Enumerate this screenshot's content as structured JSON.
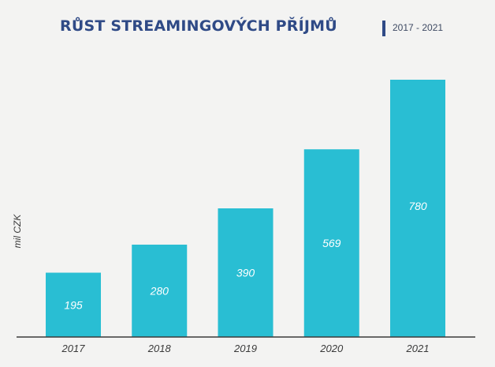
{
  "header": {
    "title": "RŮST STREAMINGOVÝCH PŘÍJMŮ",
    "subtitle": "2017 - 2021"
  },
  "chart_data": {
    "type": "bar",
    "title": "RŮST STREAMINGOVÝCH PŘÍJMŮ",
    "subtitle": "2017 - 2021",
    "xlabel": "",
    "ylabel": "mil CZK",
    "categories": [
      "2017",
      "2018",
      "2019",
      "2020",
      "2021"
    ],
    "values": [
      195,
      280,
      390,
      569,
      780
    ],
    "ylim": [
      0,
      800
    ],
    "grid": false,
    "legend": "none",
    "colors": {
      "bar": "#29bed3",
      "bar_label": "#ffffff",
      "title": "#2f4a86",
      "axis": "#3a3a3a",
      "tick_label": "#3a3a3a"
    }
  }
}
